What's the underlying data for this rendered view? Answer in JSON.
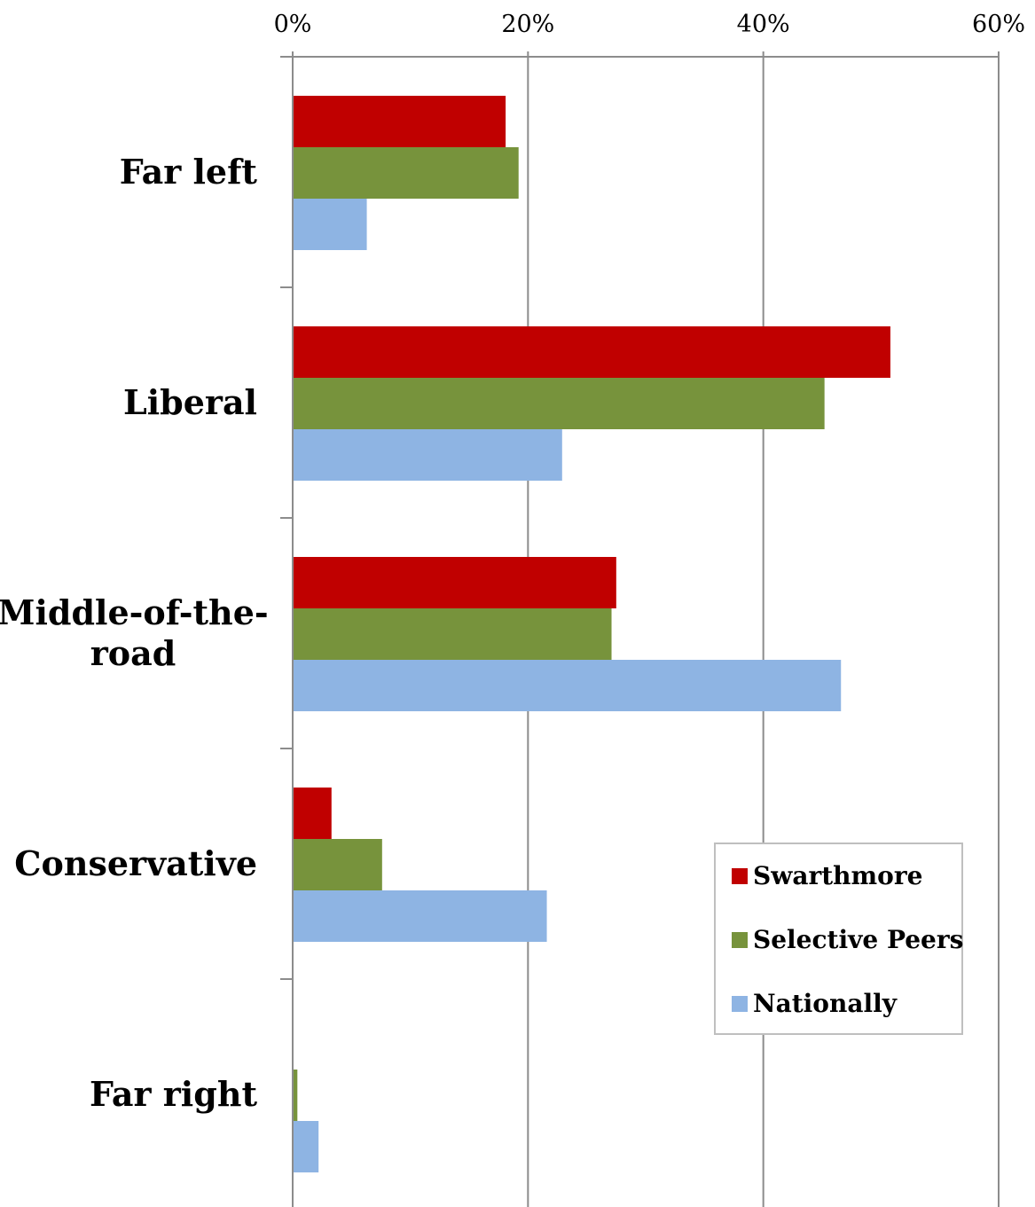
{
  "chart_data": {
    "type": "bar",
    "orientation": "horizontal",
    "categories": [
      "Far left",
      "Liberal",
      "Middle-of-the-road",
      "Conservative",
      "Far right"
    ],
    "series": [
      {
        "name": "Swarthmore",
        "color": "#c00000",
        "values": [
          18.1,
          50.8,
          27.5,
          3.3,
          0.0
        ]
      },
      {
        "name": "Selective Peers",
        "color": "#77933c",
        "values": [
          19.2,
          45.2,
          27.1,
          7.6,
          0.4
        ]
      },
      {
        "name": "Nationally",
        "color": "#8eb4e3",
        "values": [
          6.3,
          22.9,
          46.6,
          21.6,
          2.2
        ]
      }
    ],
    "xlim": [
      0,
      60
    ],
    "xticks": [
      "0%",
      "20%",
      "40%",
      "60%"
    ],
    "xtick_values": [
      0,
      20,
      40,
      60
    ],
    "grid": true,
    "legend_position": "bottom-right"
  }
}
